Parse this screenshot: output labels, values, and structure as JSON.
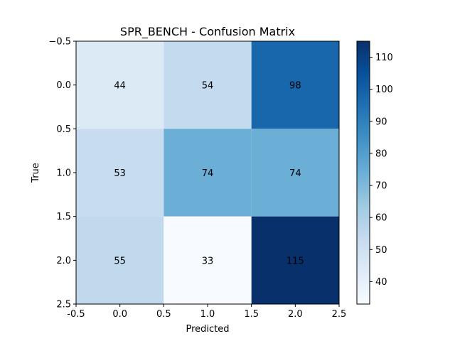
{
  "chart_data": {
    "type": "heatmap",
    "title": "SPR_BENCH - Confusion Matrix",
    "xlabel": "Predicted",
    "ylabel": "True",
    "matrix": [
      [
        44,
        54,
        98
      ],
      [
        53,
        74,
        74
      ],
      [
        55,
        33,
        115
      ]
    ],
    "x_ticks": [
      "-0.5",
      "0.0",
      "0.5",
      "1.0",
      "1.5",
      "2.0",
      "2.5"
    ],
    "y_ticks": [
      "−0.5",
      "0.0",
      "0.5",
      "1.0",
      "1.5",
      "2.0",
      "2.5"
    ],
    "xlim": [
      -0.5,
      2.5
    ],
    "ylim": [
      -0.5,
      2.5
    ],
    "colormap": "Blues",
    "color_range": [
      33,
      115
    ],
    "colorbar_ticks": [
      "40",
      "50",
      "60",
      "70",
      "80",
      "90",
      "100",
      "110"
    ],
    "colorbar_tick_values": [
      40,
      50,
      60,
      70,
      80,
      90,
      100,
      110
    ],
    "grid": false,
    "colors": {
      "low": "#f7fbff",
      "high": "#08306b"
    }
  }
}
